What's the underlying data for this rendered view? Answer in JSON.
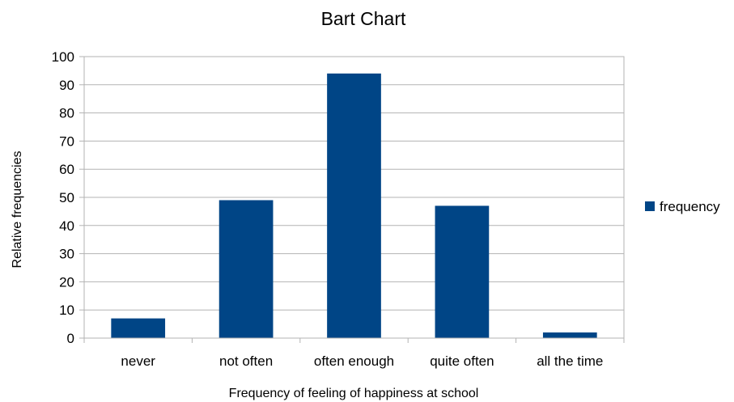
{
  "chart_data": {
    "type": "bar",
    "title": "Bart Chart",
    "xlabel": "Frequency of feeling of happiness at school",
    "ylabel": "Relative frequencies",
    "categories": [
      "never",
      "not often",
      "often enough",
      "quite often",
      "all the time"
    ],
    "series": [
      {
        "name": "frequency",
        "values": [
          7,
          49,
          94,
          47,
          2
        ],
        "color": "#004586"
      }
    ],
    "ylim": [
      0,
      100
    ],
    "yticks": [
      "0",
      "10",
      "20",
      "30",
      "40",
      "50",
      "60",
      "70",
      "80",
      "90",
      "100"
    ],
    "grid": true,
    "legend_position": "right"
  }
}
